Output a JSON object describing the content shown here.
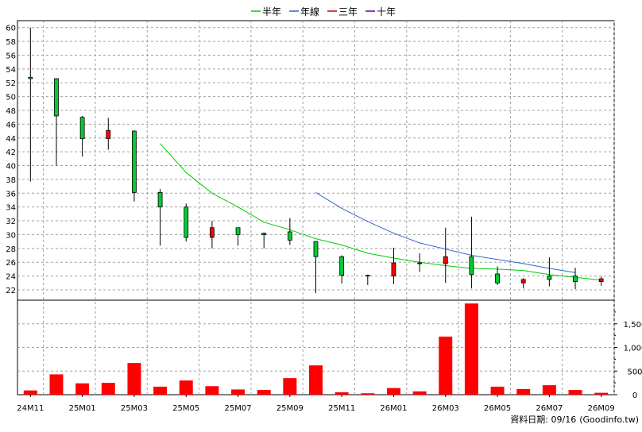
{
  "chart_data": [
    {
      "type": "candlestick",
      "x": [
        "24M11",
        "24M12",
        "25M01",
        "25M02",
        "25M03",
        "25M04",
        "25M05",
        "25M06",
        "25M07",
        "25M08",
        "25M09",
        "25M10",
        "25M11",
        "25M12",
        "26M01",
        "26M02",
        "26M03",
        "26M04",
        "26M05",
        "26M06",
        "26M07",
        "26M08",
        "26M09"
      ],
      "x_tick_labels": [
        "24M11",
        "25M01",
        "25M03",
        "25M05",
        "25M07",
        "25M09",
        "25M11",
        "26M01",
        "26M03",
        "26M05",
        "26M07",
        "26M09"
      ],
      "ylim": [
        20.5,
        61
      ],
      "y_ticks": [
        22,
        24,
        26,
        28,
        30,
        32,
        34,
        36,
        38,
        40,
        42,
        44,
        46,
        48,
        50,
        52,
        54,
        56,
        58,
        60
      ],
      "grid": true,
      "legend_position": "top-center",
      "ohlc": [
        {
          "open": 52.8,
          "high": 60.0,
          "low": 37.7,
          "close": 52.6
        },
        {
          "open": 52.6,
          "high": 52.6,
          "low": 40.0,
          "close": 47.2
        },
        {
          "open": 47.0,
          "high": 47.2,
          "low": 41.3,
          "close": 43.9
        },
        {
          "open": 43.9,
          "high": 46.9,
          "low": 42.3,
          "close": 45.1
        },
        {
          "open": 45.0,
          "high": 45.1,
          "low": 34.8,
          "close": 36.1
        },
        {
          "open": 36.1,
          "high": 36.6,
          "low": 28.4,
          "close": 34.0
        },
        {
          "open": 34.0,
          "high": 34.5,
          "low": 29.0,
          "close": 29.6
        },
        {
          "open": 29.6,
          "high": 32.0,
          "low": 28.0,
          "close": 31.0
        },
        {
          "open": 31.0,
          "high": 31.0,
          "low": 28.4,
          "close": 30.0
        },
        {
          "open": 30.2,
          "high": 30.3,
          "low": 28.0,
          "close": 30.0
        },
        {
          "open": 30.4,
          "high": 32.4,
          "low": 28.5,
          "close": 29.2
        },
        {
          "open": 29.0,
          "high": 29.0,
          "low": 21.5,
          "close": 26.8
        },
        {
          "open": 26.8,
          "high": 27.0,
          "low": 22.9,
          "close": 24.1
        },
        {
          "open": 24.1,
          "high": 24.2,
          "low": 22.7,
          "close": 24.0
        },
        {
          "open": 24.0,
          "high": 28.1,
          "low": 22.8,
          "close": 25.9
        },
        {
          "open": 25.9,
          "high": 27.3,
          "low": 24.6,
          "close": 25.8
        },
        {
          "open": 25.8,
          "high": 31.0,
          "low": 23.0,
          "close": 26.8
        },
        {
          "open": 26.8,
          "high": 32.6,
          "low": 22.2,
          "close": 24.2
        },
        {
          "open": 24.3,
          "high": 25.4,
          "low": 22.7,
          "close": 23.0
        },
        {
          "open": 23.0,
          "high": 23.7,
          "low": 22.2,
          "close": 23.5
        },
        {
          "open": 24.0,
          "high": 26.7,
          "low": 22.5,
          "close": 23.5
        },
        {
          "open": 24.0,
          "high": 25.2,
          "low": 22.1,
          "close": 23.2
        },
        {
          "open": 23.2,
          "high": 23.9,
          "low": 22.6,
          "close": 23.6
        }
      ],
      "series": [
        {
          "name": "半年",
          "color": "#00cc00",
          "x": [
            "25M04",
            "25M05",
            "25M06",
            "25M07",
            "25M08",
            "25M09",
            "25M10",
            "25M11",
            "25M12",
            "26M01",
            "26M02",
            "26M03",
            "26M04",
            "26M05",
            "26M06",
            "26M07",
            "26M08",
            "26M09"
          ],
          "values": [
            43.2,
            39.0,
            36.0,
            34.0,
            31.8,
            30.7,
            29.4,
            28.5,
            27.3,
            26.6,
            26.0,
            25.5,
            25.1,
            25.0,
            24.8,
            24.2,
            23.8,
            23.4
          ]
        },
        {
          "name": "年線",
          "color": "#3366cc",
          "x": [
            "25M10",
            "25M11",
            "25M12",
            "26M01",
            "26M02",
            "26M03",
            "26M04",
            "26M05",
            "26M06",
            "26M07",
            "26M08"
          ],
          "values": [
            36.1,
            33.8,
            31.9,
            30.2,
            28.8,
            27.9,
            27.0,
            26.4,
            25.8,
            25.1,
            24.5
          ]
        },
        {
          "name": "三年",
          "color": "#cc0000",
          "x": [],
          "values": []
        },
        {
          "name": "十年",
          "color": "#6600aa",
          "x": [],
          "values": []
        }
      ]
    },
    {
      "type": "bar",
      "x": [
        "24M11",
        "24M12",
        "25M01",
        "25M02",
        "25M03",
        "25M04",
        "25M05",
        "25M06",
        "25M07",
        "25M08",
        "25M09",
        "25M10",
        "25M11",
        "25M12",
        "26M01",
        "26M02",
        "26M03",
        "26M04",
        "26M05",
        "26M06",
        "26M07",
        "26M08",
        "26M09"
      ],
      "values": [
        90,
        430,
        240,
        250,
        670,
        170,
        300,
        180,
        110,
        100,
        350,
        620,
        50,
        30,
        140,
        70,
        1230,
        1930,
        170,
        120,
        200,
        100,
        40
      ],
      "ylim": [
        0,
        2000
      ],
      "y_ticks": [
        0,
        500,
        1000,
        1500
      ],
      "y_tick_labels": [
        "0",
        "500",
        "1,000",
        "1,500"
      ],
      "color": "#ff0000",
      "grid": true
    }
  ],
  "footer": {
    "data_date": "資料日期: 09/16",
    "source": "(Goodinfo.tw)"
  }
}
